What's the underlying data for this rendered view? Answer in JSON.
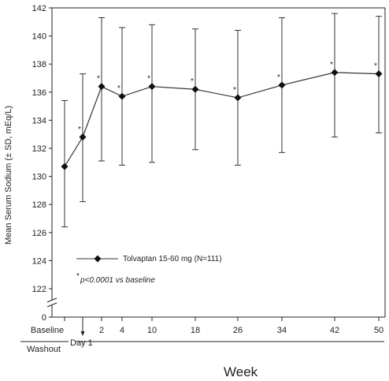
{
  "chart_data": {
    "type": "line",
    "title": "",
    "ylabel": "Mean Serum Sodium (± SD, mEq/L)",
    "xlabel": "Week",
    "ylim": [
      122,
      142
    ],
    "yticks": [
      "142",
      "140",
      "138",
      "136",
      "134",
      "132",
      "130",
      "128",
      "126",
      "124",
      "122"
    ],
    "ybreak_label": "0",
    "x": [
      "Baseline",
      "Day 1",
      "2",
      "4",
      "10",
      "18",
      "26",
      "34",
      "42",
      "50"
    ],
    "series": [
      {
        "name": "Tolvaptan 15-60 mg (N=111)",
        "values": [
          130.7,
          132.8,
          136.4,
          135.7,
          136.4,
          136.2,
          135.6,
          136.5,
          137.4,
          137.3
        ],
        "sd_upper": [
          135.4,
          137.3,
          141.3,
          140.6,
          140.8,
          140.5,
          140.4,
          141.3,
          141.6,
          141.4
        ],
        "sd_lower": [
          126.4,
          128.2,
          131.1,
          130.8,
          131.0,
          131.9,
          130.8,
          131.7,
          132.8,
          133.1
        ],
        "significant": [
          false,
          true,
          true,
          true,
          true,
          true,
          true,
          true,
          true,
          true
        ]
      }
    ],
    "significance_marker": "*",
    "significance_note": "p<0.0001 vs baseline",
    "legend_position": "bottom-left-inside",
    "grid": false,
    "period_labels": {
      "washout": "Washout",
      "week": "Week"
    },
    "colors": {
      "line": "#333333",
      "marker": "#111111"
    }
  }
}
